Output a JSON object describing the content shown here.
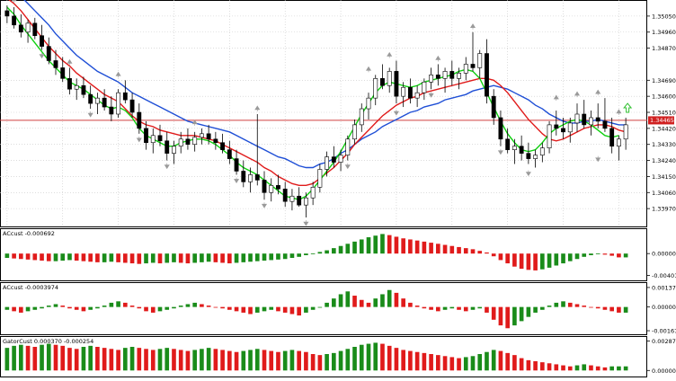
{
  "colors": {
    "background": "#ffffff",
    "grid": "#c8c8c8",
    "bull_candle": "#ffffff",
    "bear_candle": "#000000",
    "candle_outline": "#000000",
    "alligator_jaw": "#1f4fd6",
    "alligator_teeth": "#e01b1b",
    "alligator_lips": "#10d010",
    "price_line": "#d04040",
    "price_tag_bg": "#d02020",
    "osc_up": "#1a8c1a",
    "osc_down": "#e01b1b",
    "fractal": "#9a9a9a",
    "arrow_up": "#30c030"
  },
  "main": {
    "price_tag": "1.34465",
    "price_tag_value": 1.34465,
    "ylim": [
      1.3389,
      1.3512
    ],
    "yticks": [
      "1.35050",
      "1.34960",
      "1.34870",
      "1.34690",
      "1.34600",
      "1.34510",
      "1.34420",
      "1.34330",
      "1.34240",
      "1.34150",
      "1.34060",
      "1.33970"
    ],
    "ytick_values": [
      1.3505,
      1.3496,
      1.3487,
      1.3469,
      1.346,
      1.3451,
      1.3442,
      1.3433,
      1.3424,
      1.3415,
      1.3406,
      1.3397
    ]
  },
  "panels": {
    "ac": {
      "label": "ACcust -0.000692",
      "yticks": [
        "0.000000",
        "-0.004014"
      ],
      "ytick_values": [
        0.0,
        -0.004014
      ],
      "ylim": [
        -0.0046,
        0.004
      ]
    },
    "ao": {
      "label": "ACcust -0.0003974",
      "yticks": [
        "0.0013773",
        "0.000000",
        "-0.0016756"
      ],
      "ytick_values": [
        0.0013773,
        0.0,
        -0.0016756
      ],
      "ylim": [
        -0.0018,
        0.0015
      ]
    },
    "gator": {
      "label": "GatorCust 0.000370 -0.000254",
      "yticks": [
        "0.002872",
        "0.000000"
      ],
      "ytick_values": [
        0.002872,
        0.0
      ],
      "ylim": [
        -0.0005,
        0.003
      ]
    }
  },
  "chart_data": {
    "type": "candlestick",
    "candles": [
      [
        1.3508,
        1.3511,
        1.3501,
        1.3505
      ],
      [
        1.3505,
        1.351,
        1.3498,
        1.35
      ],
      [
        1.35,
        1.3506,
        1.3493,
        1.3496
      ],
      [
        1.3496,
        1.3503,
        1.349,
        1.3501
      ],
      [
        1.3501,
        1.3504,
        1.3492,
        1.3494
      ],
      [
        1.3494,
        1.35,
        1.3486,
        1.3488
      ],
      [
        1.3488,
        1.3493,
        1.3478,
        1.348
      ],
      [
        1.348,
        1.3486,
        1.3472,
        1.3476
      ],
      [
        1.3476,
        1.3482,
        1.3468,
        1.347
      ],
      [
        1.347,
        1.3476,
        1.3461,
        1.3464
      ],
      [
        1.3464,
        1.347,
        1.3458,
        1.3466
      ],
      [
        1.3466,
        1.3471,
        1.3459,
        1.3461
      ],
      [
        1.3461,
        1.3466,
        1.3453,
        1.3456
      ],
      [
        1.3456,
        1.3462,
        1.345,
        1.3459
      ],
      [
        1.3459,
        1.3464,
        1.3452,
        1.3454
      ],
      [
        1.3454,
        1.346,
        1.3446,
        1.345
      ],
      [
        1.345,
        1.3464,
        1.3448,
        1.3462
      ],
      [
        1.3462,
        1.3469,
        1.3456,
        1.3458
      ],
      [
        1.3458,
        1.3462,
        1.3448,
        1.3451
      ],
      [
        1.3451,
        1.3456,
        1.3439,
        1.3442
      ],
      [
        1.3442,
        1.3446,
        1.343,
        1.3434
      ],
      [
        1.3434,
        1.3442,
        1.3428,
        1.3438
      ],
      [
        1.3438,
        1.3444,
        1.3432,
        1.3435
      ],
      [
        1.3435,
        1.344,
        1.3424,
        1.3428
      ],
      [
        1.3428,
        1.3435,
        1.3422,
        1.3432
      ],
      [
        1.3432,
        1.344,
        1.3428,
        1.3436
      ],
      [
        1.3436,
        1.3442,
        1.343,
        1.3433
      ],
      [
        1.3433,
        1.344,
        1.3429,
        1.3437
      ],
      [
        1.3437,
        1.3442,
        1.3433,
        1.3439
      ],
      [
        1.3439,
        1.3444,
        1.3433,
        1.3436
      ],
      [
        1.3436,
        1.344,
        1.343,
        1.3434
      ],
      [
        1.3434,
        1.3439,
        1.3428,
        1.343
      ],
      [
        1.343,
        1.3435,
        1.3422,
        1.3425
      ],
      [
        1.3425,
        1.343,
        1.3416,
        1.3418
      ],
      [
        1.3418,
        1.3424,
        1.3409,
        1.3412
      ],
      [
        1.3412,
        1.342,
        1.3406,
        1.3416
      ],
      [
        1.3416,
        1.345,
        1.341,
        1.3413
      ],
      [
        1.3413,
        1.3418,
        1.3402,
        1.3406
      ],
      [
        1.3406,
        1.3414,
        1.3401,
        1.341
      ],
      [
        1.341,
        1.3416,
        1.3405,
        1.3408
      ],
      [
        1.3408,
        1.3412,
        1.3398,
        1.3401
      ],
      [
        1.3401,
        1.3408,
        1.3396,
        1.3404
      ],
      [
        1.3404,
        1.3409,
        1.3398,
        1.3399
      ],
      [
        1.3399,
        1.3406,
        1.3392,
        1.3403
      ],
      [
        1.3403,
        1.3412,
        1.3399,
        1.3409
      ],
      [
        1.3409,
        1.3422,
        1.3406,
        1.3419
      ],
      [
        1.3419,
        1.3429,
        1.3415,
        1.3426
      ],
      [
        1.3426,
        1.3432,
        1.342,
        1.3423
      ],
      [
        1.3423,
        1.343,
        1.3418,
        1.3427
      ],
      [
        1.3427,
        1.3438,
        1.3424,
        1.3436
      ],
      [
        1.3436,
        1.3447,
        1.3433,
        1.3444
      ],
      [
        1.3444,
        1.3456,
        1.344,
        1.3453
      ],
      [
        1.3453,
        1.3462,
        1.3447,
        1.3459
      ],
      [
        1.3459,
        1.3472,
        1.3455,
        1.347
      ],
      [
        1.347,
        1.3478,
        1.3464,
        1.3466
      ],
      [
        1.3466,
        1.3476,
        1.3462,
        1.3474
      ],
      [
        1.3474,
        1.348,
        1.3456,
        1.346
      ],
      [
        1.346,
        1.3468,
        1.3454,
        1.3465
      ],
      [
        1.3465,
        1.347,
        1.3456,
        1.3459
      ],
      [
        1.3459,
        1.3466,
        1.3454,
        1.3462
      ],
      [
        1.3462,
        1.347,
        1.3458,
        1.3468
      ],
      [
        1.3468,
        1.3476,
        1.3464,
        1.3472
      ],
      [
        1.3472,
        1.3478,
        1.3466,
        1.347
      ],
      [
        1.347,
        1.3476,
        1.3462,
        1.3474
      ],
      [
        1.3474,
        1.348,
        1.3466,
        1.347
      ],
      [
        1.347,
        1.3476,
        1.3464,
        1.3473
      ],
      [
        1.3473,
        1.3482,
        1.3469,
        1.3478
      ],
      [
        1.3478,
        1.3496,
        1.3474,
        1.3476
      ],
      [
        1.3476,
        1.3486,
        1.347,
        1.3484
      ],
      [
        1.3484,
        1.3492,
        1.3456,
        1.346
      ],
      [
        1.346,
        1.3464,
        1.3444,
        1.3448
      ],
      [
        1.3448,
        1.3452,
        1.3432,
        1.3436
      ],
      [
        1.3436,
        1.3442,
        1.3428,
        1.343
      ],
      [
        1.343,
        1.3436,
        1.3422,
        1.3432
      ],
      [
        1.3432,
        1.3438,
        1.3424,
        1.3428
      ],
      [
        1.3428,
        1.3434,
        1.3422,
        1.3425
      ],
      [
        1.3425,
        1.343,
        1.342,
        1.3427
      ],
      [
        1.3427,
        1.3434,
        1.3423,
        1.3431
      ],
      [
        1.3431,
        1.3446,
        1.3428,
        1.3444
      ],
      [
        1.3444,
        1.3452,
        1.3438,
        1.3442
      ],
      [
        1.3442,
        1.3448,
        1.3436,
        1.344
      ],
      [
        1.344,
        1.3448,
        1.3434,
        1.3445
      ],
      [
        1.3445,
        1.3456,
        1.344,
        1.345
      ],
      [
        1.345,
        1.3458,
        1.3442,
        1.3444
      ],
      [
        1.3444,
        1.3452,
        1.3438,
        1.3448
      ],
      [
        1.3448,
        1.3456,
        1.3442,
        1.3446
      ],
      [
        1.3446,
        1.3459,
        1.344,
        1.3442
      ],
      [
        1.3442,
        1.3448,
        1.3428,
        1.3432
      ],
      [
        1.3432,
        1.3438,
        1.3424,
        1.3436
      ],
      [
        1.3436,
        1.3448,
        1.343,
        1.3444
      ]
    ],
    "alligator": {
      "jaw": [
        1.352,
        1.3518,
        1.3516,
        1.3512,
        1.3508,
        1.3504,
        1.35,
        1.3495,
        1.3491,
        1.3487,
        1.3483,
        1.348,
        1.3477,
        1.3474,
        1.3472,
        1.347,
        1.3468,
        1.3465,
        1.3462,
        1.346,
        1.3458,
        1.3456,
        1.3454,
        1.3452,
        1.345,
        1.3448,
        1.3446,
        1.3445,
        1.3444,
        1.3443,
        1.3442,
        1.3441,
        1.344,
        1.3438,
        1.3436,
        1.3434,
        1.3432,
        1.343,
        1.3428,
        1.3426,
        1.3425,
        1.3423,
        1.3421,
        1.342,
        1.342,
        1.3422,
        1.3423,
        1.3425,
        1.3428,
        1.343,
        1.3433,
        1.3436,
        1.3438,
        1.344,
        1.3443,
        1.3445,
        1.3447,
        1.3449,
        1.3451,
        1.3452,
        1.3454,
        1.3455,
        1.3456,
        1.3458,
        1.3459,
        1.346,
        1.3461,
        1.3463,
        1.3464,
        1.3465,
        1.3466,
        1.3465,
        1.3464,
        1.3462,
        1.346,
        1.3458,
        1.3455,
        1.3453,
        1.345,
        1.3448,
        1.3446,
        1.3445,
        1.3445,
        1.3446,
        1.3446,
        1.3447,
        1.3446,
        1.3445,
        1.3444,
        1.3444
      ],
      "teeth": [
        1.3515,
        1.3512,
        1.3508,
        1.3503,
        1.3498,
        1.3493,
        1.3488,
        1.3484,
        1.348,
        1.3477,
        1.3473,
        1.347,
        1.3467,
        1.3464,
        1.3461,
        1.3459,
        1.3457,
        1.3453,
        1.3449,
        1.3446,
        1.3444,
        1.3443,
        1.3441,
        1.344,
        1.3439,
        1.3438,
        1.3438,
        1.3438,
        1.3437,
        1.3436,
        1.3435,
        1.3433,
        1.3431,
        1.3429,
        1.3427,
        1.3425,
        1.3423,
        1.342,
        1.3418,
        1.3415,
        1.3413,
        1.3411,
        1.341,
        1.341,
        1.3411,
        1.3414,
        1.3417,
        1.342,
        1.3424,
        1.3428,
        1.3433,
        1.3437,
        1.3441,
        1.3445,
        1.3449,
        1.3452,
        1.3455,
        1.3457,
        1.3459,
        1.346,
        1.3462,
        1.3463,
        1.3464,
        1.3465,
        1.3466,
        1.3467,
        1.3468,
        1.3469,
        1.347,
        1.347,
        1.3469,
        1.3466,
        1.3462,
        1.3457,
        1.3452,
        1.3447,
        1.3443,
        1.3439,
        1.3436,
        1.3435,
        1.3436,
        1.3438,
        1.344,
        1.3442,
        1.3443,
        1.3444,
        1.3444,
        1.3443,
        1.3441,
        1.344
      ],
      "lips": [
        1.351,
        1.3506,
        1.35,
        1.3495,
        1.349,
        1.3485,
        1.348,
        1.3476,
        1.3472,
        1.3468,
        1.3466,
        1.3464,
        1.3461,
        1.3458,
        1.3455,
        1.3453,
        1.3454,
        1.3452,
        1.3448,
        1.3442,
        1.3438,
        1.3436,
        1.3434,
        1.3432,
        1.3432,
        1.3434,
        1.3435,
        1.3436,
        1.3436,
        1.3435,
        1.3433,
        1.343,
        1.3427,
        1.3423,
        1.342,
        1.3418,
        1.3416,
        1.3413,
        1.341,
        1.3407,
        1.3404,
        1.3403,
        1.3402,
        1.3404,
        1.3408,
        1.3413,
        1.3418,
        1.3423,
        1.3429,
        1.3436,
        1.3443,
        1.345,
        1.3456,
        1.3462,
        1.3466,
        1.3468,
        1.3467,
        1.3466,
        1.3465,
        1.3466,
        1.3468,
        1.3469,
        1.347,
        1.3471,
        1.3472,
        1.3474,
        1.3475,
        1.3474,
        1.347,
        1.3462,
        1.3454,
        1.3446,
        1.3439,
        1.3434,
        1.343,
        1.3429,
        1.343,
        1.3434,
        1.3439,
        1.3442,
        1.3444,
        1.3446,
        1.3447,
        1.3446,
        1.3444,
        1.3441,
        1.3438,
        1.3437,
        1.3438
      ]
    },
    "fractals_up": [
      [
        1,
        1.3511
      ],
      [
        9,
        1.3476
      ],
      [
        16,
        1.3469
      ],
      [
        27,
        1.3442
      ],
      [
        36,
        1.345
      ],
      [
        52,
        1.3472
      ],
      [
        55,
        1.348
      ],
      [
        62,
        1.3478
      ],
      [
        67,
        1.3496
      ],
      [
        79,
        1.3456
      ],
      [
        82,
        1.3458
      ],
      [
        85,
        1.3459
      ],
      [
        88,
        1.3448
      ]
    ],
    "fractals_down": [
      [
        5,
        1.3486
      ],
      [
        12,
        1.3453
      ],
      [
        19,
        1.3439
      ],
      [
        23,
        1.3424
      ],
      [
        33,
        1.3416
      ],
      [
        37,
        1.3402
      ],
      [
        43,
        1.3392
      ],
      [
        49,
        1.3424
      ],
      [
        56,
        1.3454
      ],
      [
        61,
        1.3464
      ],
      [
        71,
        1.3432
      ],
      [
        75,
        1.342
      ],
      [
        85,
        1.3428
      ]
    ],
    "ac_values": [
      -0.0008,
      -0.0009,
      -0.001,
      -0.0011,
      -0.0012,
      -0.0013,
      -0.0014,
      -0.0014,
      -0.0013,
      -0.0012,
      -0.0013,
      -0.0014,
      -0.0015,
      -0.0016,
      -0.0016,
      -0.0015,
      -0.0016,
      -0.0017,
      -0.0018,
      -0.0019,
      -0.0018,
      -0.0017,
      -0.0018,
      -0.0017,
      -0.0016,
      -0.0017,
      -0.0018,
      -0.0017,
      -0.0016,
      -0.0015,
      -0.0016,
      -0.0017,
      -0.0018,
      -0.0017,
      -0.0016,
      -0.0015,
      -0.0014,
      -0.0013,
      -0.0012,
      -0.0011,
      -0.001,
      -0.0008,
      -0.0006,
      -0.0003,
      0.0,
      0.0003,
      0.0006,
      0.001,
      0.0014,
      0.0018,
      0.0022,
      0.0026,
      0.003,
      0.0033,
      0.0036,
      0.0034,
      0.0031,
      0.0028,
      0.0026,
      0.0024,
      0.0022,
      0.002,
      0.0018,
      0.0016,
      0.0014,
      0.0012,
      0.001,
      0.0008,
      0.0005,
      0.0002,
      -0.0005,
      -0.0012,
      -0.0018,
      -0.0024,
      -0.0028,
      -0.003,
      -0.0031,
      -0.0029,
      -0.0026,
      -0.0022,
      -0.0018,
      -0.0014,
      -0.001,
      -0.0006,
      -0.0003,
      -0.0001,
      -0.0002,
      -0.0004,
      -0.0007,
      -0.0007
    ],
    "ao_values": [
      -0.0002,
      -0.0003,
      -0.0004,
      -0.0003,
      -0.0002,
      -0.0001,
      0.0001,
      0.0002,
      0.0001,
      -0.0001,
      -0.0002,
      -0.0003,
      -0.0002,
      -0.0001,
      0.0001,
      0.0003,
      0.0004,
      0.0003,
      0.0001,
      -0.0001,
      -0.0003,
      -0.0004,
      -0.0003,
      -0.0002,
      -0.0001,
      0.0001,
      0.0002,
      0.0003,
      0.0002,
      0.0001,
      0.0,
      -0.0001,
      -0.0002,
      -0.0003,
      -0.0004,
      -0.0005,
      -0.0004,
      -0.0003,
      -0.0002,
      -0.0003,
      -0.0004,
      -0.0005,
      -0.0006,
      -0.0004,
      -0.0002,
      0.0,
      0.0003,
      0.0006,
      0.0009,
      0.0011,
      0.0008,
      0.0005,
      0.0003,
      0.0006,
      0.0009,
      0.0012,
      0.001,
      0.0006,
      0.0003,
      0.0001,
      -0.0001,
      -0.0002,
      -0.0003,
      -0.0002,
      -0.0001,
      -0.0002,
      -0.0003,
      -0.0002,
      -0.0001,
      -0.0004,
      -0.0009,
      -0.0013,
      -0.0015,
      -0.0013,
      -0.001,
      -0.0007,
      -0.0004,
      -0.0002,
      0.0001,
      0.0003,
      0.0004,
      0.0003,
      0.0002,
      0.0001,
      0.0,
      -0.0001,
      -0.0002,
      -0.0003,
      -0.0004,
      -0.0004
    ],
    "gator_upper": [
      0.0022,
      0.0024,
      0.0025,
      0.0024,
      0.0023,
      0.0025,
      0.0026,
      0.0025,
      0.0024,
      0.0022,
      0.0021,
      0.0023,
      0.0024,
      0.0023,
      0.0022,
      0.0021,
      0.002,
      0.0022,
      0.0023,
      0.0022,
      0.0021,
      0.002,
      0.0021,
      0.0022,
      0.0021,
      0.002,
      0.0019,
      0.002,
      0.0021,
      0.0022,
      0.0021,
      0.002,
      0.0019,
      0.0018,
      0.0019,
      0.002,
      0.0021,
      0.002,
      0.0019,
      0.0018,
      0.0019,
      0.002,
      0.0019,
      0.0018,
      0.0016,
      0.0015,
      0.0016,
      0.0017,
      0.0019,
      0.0021,
      0.0023,
      0.0025,
      0.0026,
      0.0027,
      0.0026,
      0.0024,
      0.0022,
      0.002,
      0.0019,
      0.0018,
      0.0017,
      0.0016,
      0.0015,
      0.0014,
      0.0013,
      0.0012,
      0.0013,
      0.0014,
      0.0016,
      0.0018,
      0.002,
      0.0019,
      0.0017,
      0.0015,
      0.0012,
      0.001,
      0.0009,
      0.0008,
      0.0007,
      0.0006,
      0.0005,
      0.0004,
      0.0005,
      0.0006,
      0.0005,
      0.0004,
      0.0003,
      0.0004,
      0.0004,
      0.0004
    ]
  }
}
